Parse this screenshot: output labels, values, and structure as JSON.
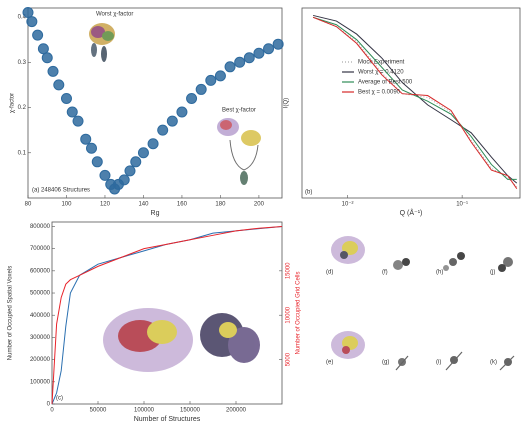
{
  "chart_data": [
    {
      "type": "scatter",
      "xlabel": "Rg",
      "ylabel": "χ-factor",
      "annotations": [
        "Worst χ-factor",
        "Best χ-factor",
        "(a)  248406 Structures"
      ],
      "color": "#2e6a9e",
      "x": [
        80,
        82,
        85,
        88,
        90,
        93,
        96,
        100,
        103,
        106,
        110,
        113,
        116,
        120,
        123,
        125,
        127,
        130,
        133,
        136,
        140,
        145,
        150,
        155,
        160,
        165,
        170,
        175,
        180,
        185,
        190,
        195,
        200,
        205,
        210
      ],
      "values": [
        0.41,
        0.39,
        0.36,
        0.33,
        0.31,
        0.28,
        0.25,
        0.22,
        0.19,
        0.17,
        0.13,
        0.11,
        0.08,
        0.05,
        0.03,
        0.02,
        0.03,
        0.04,
        0.06,
        0.08,
        0.1,
        0.12,
        0.15,
        0.17,
        0.19,
        0.22,
        0.24,
        0.26,
        0.27,
        0.29,
        0.3,
        0.31,
        0.32,
        0.33,
        0.34
      ],
      "xlim": [
        80,
        212
      ],
      "xticks": [
        80,
        100,
        120,
        140,
        160,
        180,
        200
      ],
      "ylim": [
        0,
        0.42
      ],
      "yticks": [
        0.1,
        0.2,
        0.3,
        0.4
      ]
    },
    {
      "type": "line",
      "xscale": "log",
      "xlabel": "Q (Å⁻¹)",
      "ylabel": "I(Q)",
      "annotations": [
        "(b)"
      ],
      "x": [
        0.005,
        0.008,
        0.012,
        0.02,
        0.03,
        0.05,
        0.08,
        0.12,
        0.18,
        0.25,
        0.3
      ],
      "series": [
        {
          "name": "Mock Experiment",
          "color": "#aaaaaa",
          "values": [
            0.97,
            0.92,
            0.84,
            0.67,
            0.56,
            0.54,
            0.46,
            0.31,
            0.16,
            0.11,
            0.06
          ]
        },
        {
          "name": "Worst χ = 0.4120",
          "color": "#333344",
          "values": [
            0.98,
            0.95,
            0.88,
            0.75,
            0.62,
            0.5,
            0.42,
            0.35,
            0.22,
            0.12,
            0.08
          ]
        },
        {
          "name": "Average of Best 500",
          "color": "#2e8b57",
          "values": [
            0.97,
            0.93,
            0.85,
            0.7,
            0.58,
            0.52,
            0.45,
            0.33,
            0.18,
            0.1,
            0.1
          ]
        },
        {
          "name": "Best χ = 0.0090",
          "color": "#d62728",
          "values": [
            0.97,
            0.92,
            0.83,
            0.66,
            0.56,
            0.55,
            0.47,
            0.3,
            0.15,
            0.12,
            0.05
          ]
        }
      ],
      "xlim": [
        0.004,
        0.32
      ],
      "xticks": [
        {
          "value": 0.01,
          "label": "10⁻²"
        },
        {
          "value": 0.1,
          "label": "10⁻¹"
        }
      ],
      "ylim": [
        0,
        1.02
      ]
    },
    {
      "type": "line",
      "xlabel": "Number of Structures",
      "ylabel": "Number of Occupied Spatial Voxels",
      "y2label": "Number of Occupied Grid Cells",
      "annotations": [
        "(c)"
      ],
      "x": [
        0,
        5000,
        10000,
        15000,
        20000,
        30000,
        50000,
        75000,
        100000,
        125000,
        150000,
        175000,
        200000,
        225000,
        250000
      ],
      "series": [
        {
          "name": null,
          "color": "#2a6fb0",
          "values": [
            0,
            50000,
            150000,
            350000,
            500000,
            580000,
            630000,
            660000,
            690000,
            720000,
            740000,
            770000,
            780000,
            790000,
            800000
          ]
        },
        {
          "name": null,
          "color": "#e8232a",
          "axis": "y2",
          "values": [
            0,
            9000,
            12000,
            13500,
            14000,
            14500,
            15500,
            16500,
            17500,
            18000,
            18500,
            19000,
            19500,
            19800,
            20000
          ]
        }
      ],
      "xlim": [
        0,
        250000
      ],
      "xticks": [
        0,
        50000,
        100000,
        150000,
        200000
      ],
      "ylim": [
        0,
        820000
      ],
      "yticks": [
        0,
        100000,
        200000,
        300000,
        400000,
        500000,
        600000,
        700000,
        800000
      ],
      "y2lim": [
        0,
        20500
      ],
      "y2ticks": [
        5000,
        10000,
        15000
      ]
    }
  ],
  "images": {
    "labels": [
      "(d)",
      "(f)",
      "(h)",
      "(j)",
      "(e)",
      "(g)",
      "(i)",
      "(k)"
    ]
  }
}
